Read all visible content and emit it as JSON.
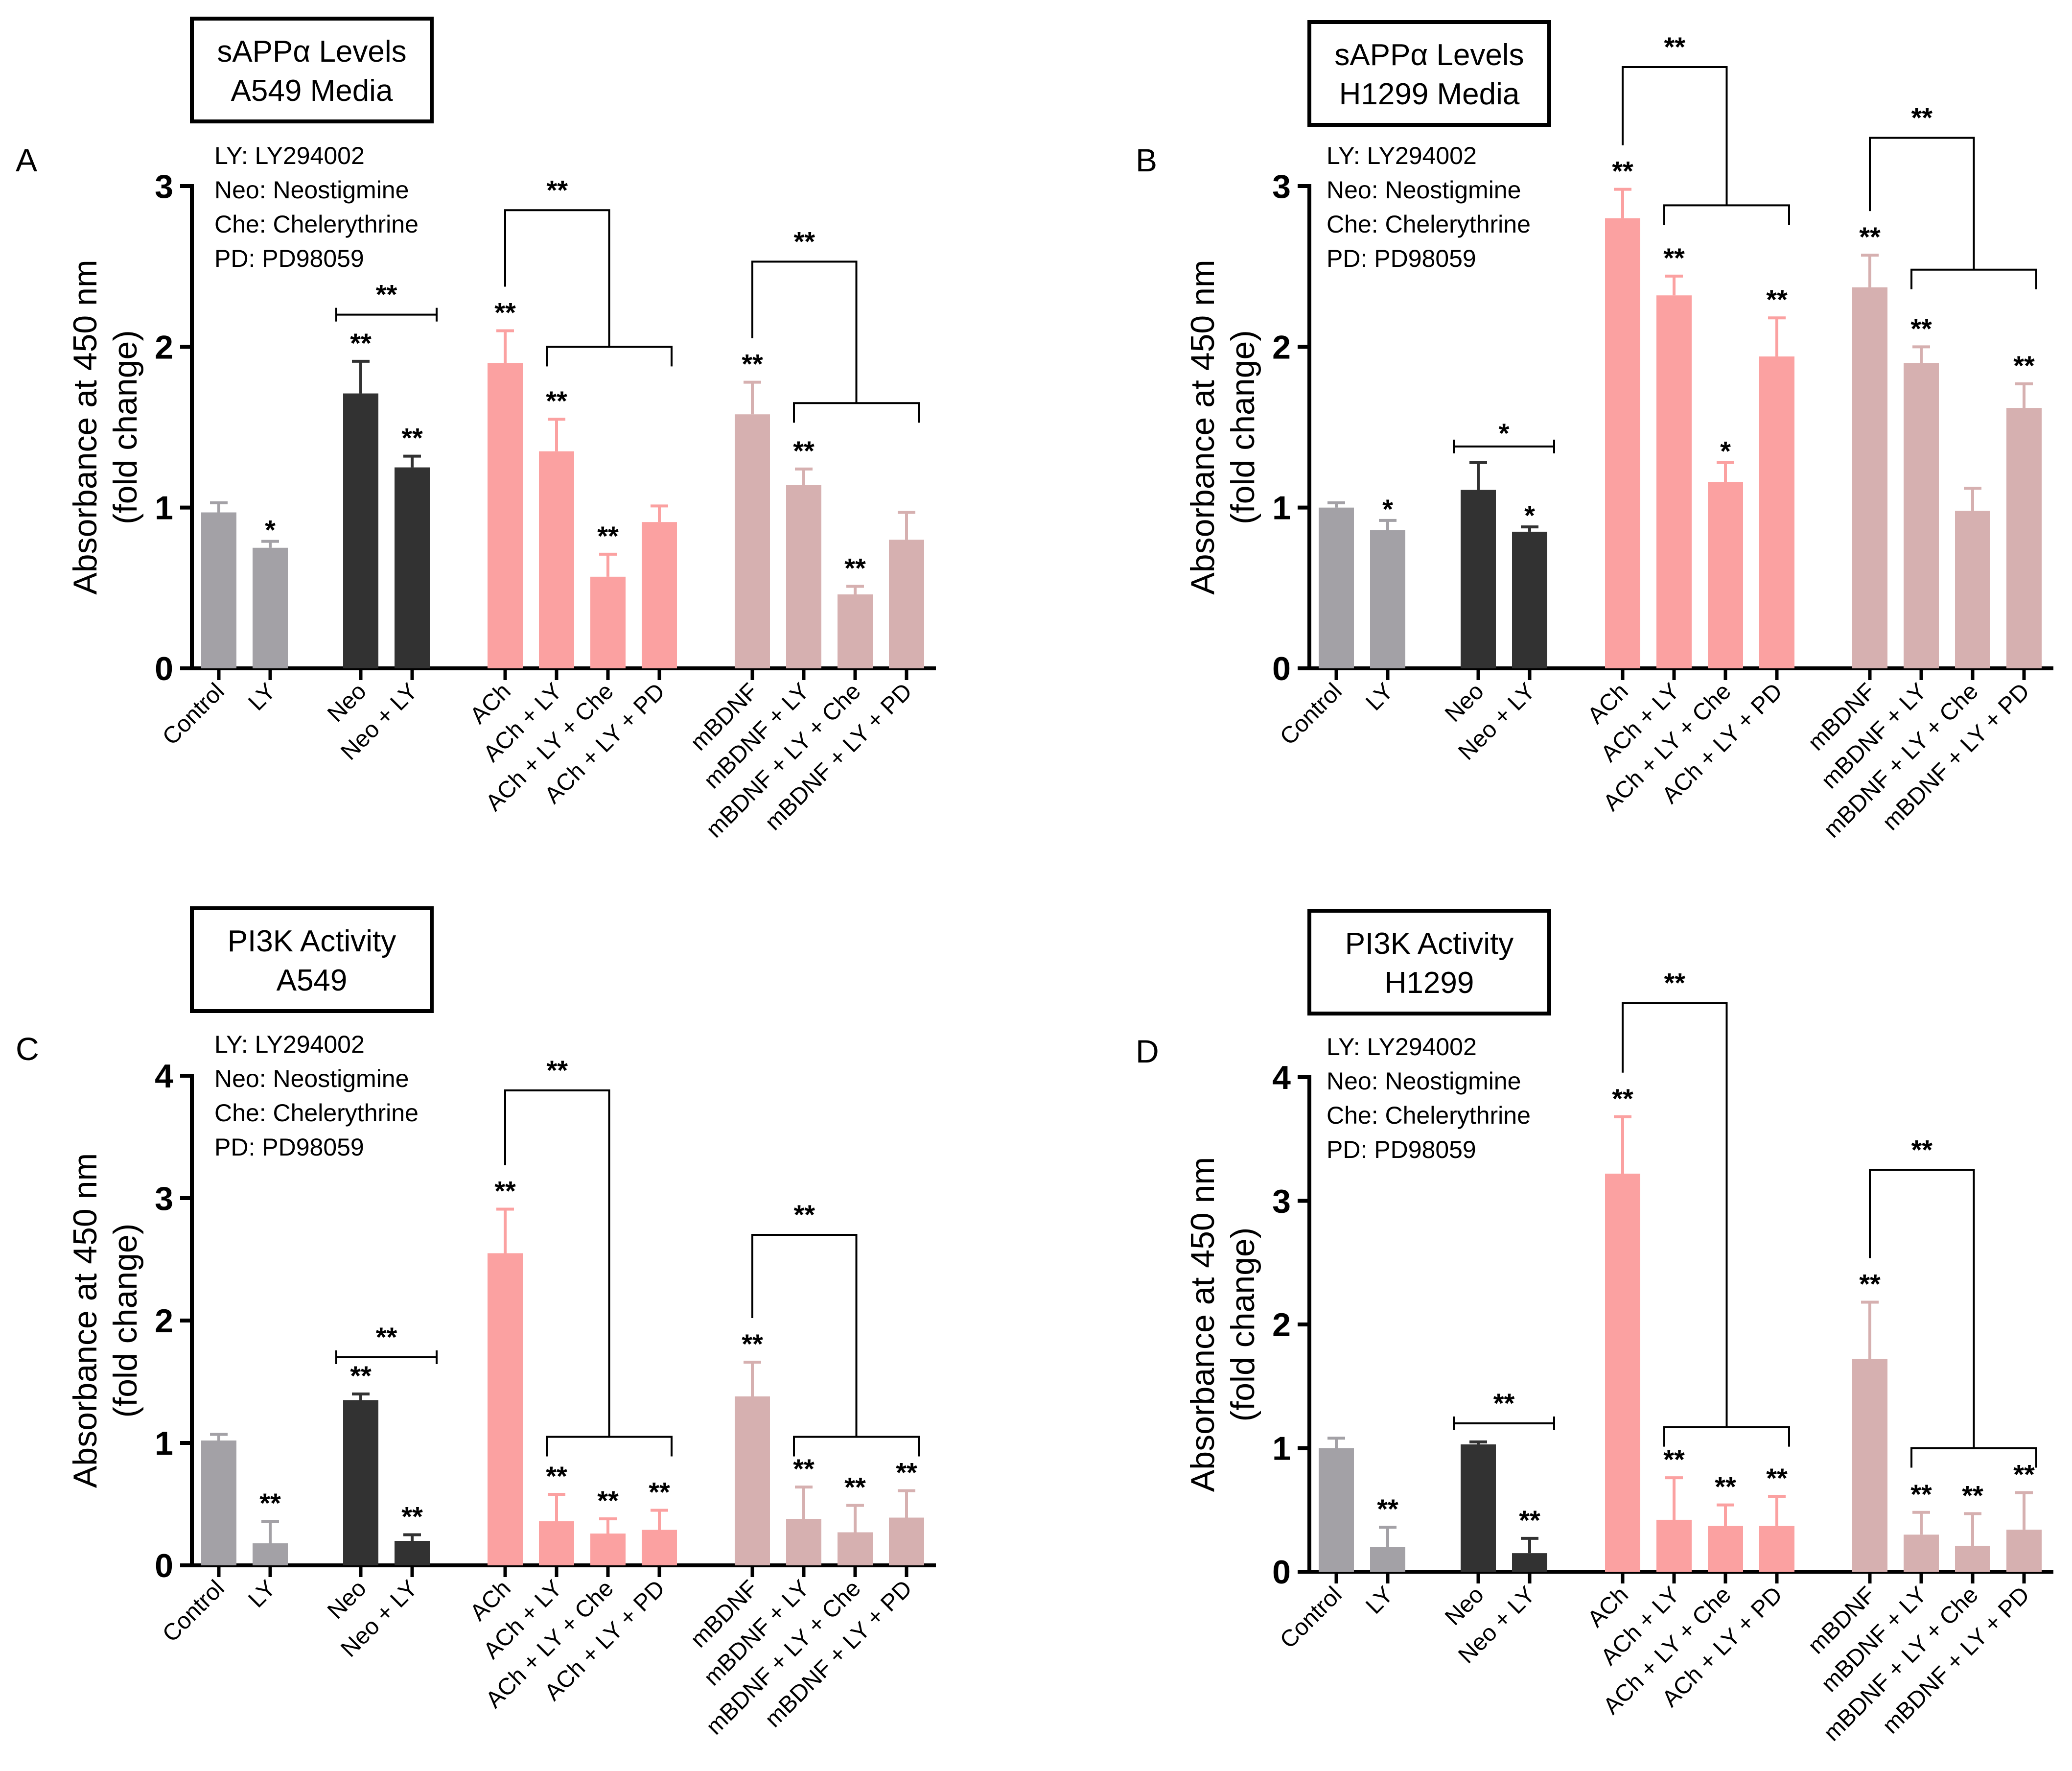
{
  "colors": {
    "gray": "#a3a1a6",
    "dark": "#323232",
    "pink": "#fba1a1",
    "mauve": "#d6b0b0",
    "axis": "#000000"
  },
  "legend_lines": [
    "LY: LY294002",
    "Neo: Neostigmine",
    "Che: Chelerythrine",
    "PD: PD98059"
  ],
  "chart_data": [
    {
      "type": "bar",
      "panel_label": "A",
      "title_lines": [
        "sAPPα Levels",
        "A549 Media"
      ],
      "ylabel_lines": [
        "Absorbance at 450 nm",
        "(fold change)"
      ],
      "ylim": [
        0,
        3
      ],
      "yticks": [
        "0",
        "1",
        "2",
        "3"
      ],
      "categories": [
        "Control",
        "LY",
        "Neo",
        "Neo + LY",
        "ACh",
        "ACh + LY",
        "ACh + LY + Che",
        "ACh + LY + PD",
        "mBDNF",
        "mBDNF + LY",
        "mBDNF + LY + Che",
        "mBDNF + LY + PD"
      ],
      "values": [
        0.97,
        0.75,
        1.71,
        1.25,
        1.9,
        1.35,
        0.57,
        0.91,
        1.58,
        1.14,
        0.46,
        0.8
      ],
      "errors": [
        0.06,
        0.04,
        0.2,
        0.07,
        0.2,
        0.2,
        0.14,
        0.1,
        0.2,
        0.1,
        0.05,
        0.17
      ],
      "color_groups": [
        "gray",
        "gray",
        "dark",
        "dark",
        "pink",
        "pink",
        "pink",
        "pink",
        "mauve",
        "mauve",
        "mauve",
        "mauve"
      ],
      "significance": [
        "",
        "*",
        "**",
        "**",
        "**",
        "**",
        "**",
        "",
        "**",
        "**",
        "**",
        ""
      ],
      "brackets": [
        {
          "type": "span",
          "from": 2,
          "to": 3,
          "y": 2.2,
          "label": "**"
        },
        {
          "type": "fork",
          "anchor": 4,
          "from": 5,
          "to": 7,
          "y_low": 2.0,
          "y_high": 2.85,
          "label": "**"
        },
        {
          "type": "fork",
          "anchor": 8,
          "from": 9,
          "to": 11,
          "y_low": 1.65,
          "y_high": 2.53,
          "label": "**"
        }
      ]
    },
    {
      "type": "bar",
      "panel_label": "B",
      "title_lines": [
        "sAPPα Levels",
        "H1299 Media"
      ],
      "ylabel_lines": [
        "Absorbance at 450 nm",
        "(fold change)"
      ],
      "ylim": [
        0,
        3
      ],
      "yticks": [
        "0",
        "1",
        "2",
        "3"
      ],
      "categories": [
        "Control",
        "LY",
        "Neo",
        "Neo + LY",
        "ACh",
        "ACh + LY",
        "ACh + LY + Che",
        "ACh + LY + PD",
        "mBDNF",
        "mBDNF + LY",
        "mBDNF + LY + Che",
        "mBDNF + LY + PD"
      ],
      "values": [
        1.0,
        0.86,
        1.11,
        0.85,
        2.8,
        2.32,
        1.16,
        1.94,
        2.37,
        1.9,
        0.98,
        1.62
      ],
      "errors": [
        0.03,
        0.06,
        0.17,
        0.03,
        0.18,
        0.12,
        0.12,
        0.24,
        0.2,
        0.1,
        0.14,
        0.15
      ],
      "color_groups": [
        "gray",
        "gray",
        "dark",
        "dark",
        "pink",
        "pink",
        "pink",
        "pink",
        "mauve",
        "mauve",
        "mauve",
        "mauve"
      ],
      "significance": [
        "",
        "*",
        "",
        "*",
        "**",
        "**",
        "*",
        "**",
        "**",
        "**",
        "",
        "**"
      ],
      "brackets": [
        {
          "type": "span",
          "from": 2,
          "to": 3,
          "y": 1.38,
          "label": "*"
        },
        {
          "type": "fork",
          "anchor": 4,
          "from": 5,
          "to": 7,
          "y_low": 2.88,
          "y_high": 3.74,
          "label": "**"
        },
        {
          "type": "fork",
          "anchor": 8,
          "from": 9,
          "to": 11,
          "y_low": 2.48,
          "y_high": 3.3,
          "label": "**"
        }
      ]
    },
    {
      "type": "bar",
      "panel_label": "C",
      "title_lines": [
        "PI3K Activity",
        "A549"
      ],
      "ylabel_lines": [
        "Absorbance at 450 nm",
        "(fold change)"
      ],
      "ylim": [
        0,
        4
      ],
      "yticks": [
        "0",
        "1",
        "2",
        "3",
        "4"
      ],
      "categories": [
        "Control",
        "LY",
        "Neo",
        "Neo + LY",
        "ACh",
        "ACh + LY",
        "ACh + LY + Che",
        "ACh + LY + PD",
        "mBDNF",
        "mBDNF + LY",
        "mBDNF + LY + Che",
        "mBDNF + LY + PD"
      ],
      "values": [
        1.02,
        0.18,
        1.35,
        0.2,
        2.55,
        0.36,
        0.26,
        0.29,
        1.38,
        0.38,
        0.27,
        0.39
      ],
      "errors": [
        0.05,
        0.18,
        0.05,
        0.05,
        0.36,
        0.22,
        0.12,
        0.16,
        0.28,
        0.26,
        0.22,
        0.22
      ],
      "color_groups": [
        "gray",
        "gray",
        "dark",
        "dark",
        "pink",
        "pink",
        "pink",
        "pink",
        "mauve",
        "mauve",
        "mauve",
        "mauve"
      ],
      "significance": [
        "",
        "**",
        "**",
        "**",
        "**",
        "**",
        "**",
        "**",
        "**",
        "**",
        "**",
        "**"
      ],
      "brackets": [
        {
          "type": "span",
          "from": 2,
          "to": 3,
          "y": 1.7,
          "label": "**"
        },
        {
          "type": "fork",
          "anchor": 4,
          "from": 5,
          "to": 7,
          "y_low": 1.05,
          "y_high": 3.88,
          "label": "**"
        },
        {
          "type": "fork",
          "anchor": 8,
          "from": 9,
          "to": 11,
          "y_low": 1.05,
          "y_high": 2.7,
          "label": "**"
        }
      ]
    },
    {
      "type": "bar",
      "panel_label": "D",
      "title_lines": [
        "PI3K Activity",
        "H1299"
      ],
      "ylabel_lines": [
        "Absorbance at 450 nm",
        "(fold change)"
      ],
      "ylim": [
        0,
        4
      ],
      "yticks": [
        "0",
        "1",
        "2",
        "3",
        "4"
      ],
      "categories": [
        "Control",
        "LY",
        "Neo",
        "Neo + LY",
        "ACh",
        "ACh + LY",
        "ACh + LY + Che",
        "ACh + LY + PD",
        "mBDNF",
        "mBDNF + LY",
        "mBDNF + LY + Che",
        "mBDNF + LY + PD"
      ],
      "values": [
        1.0,
        0.2,
        1.03,
        0.15,
        3.22,
        0.42,
        0.37,
        0.37,
        1.72,
        0.3,
        0.21,
        0.34
      ],
      "errors": [
        0.08,
        0.16,
        0.02,
        0.12,
        0.46,
        0.34,
        0.17,
        0.24,
        0.46,
        0.18,
        0.26,
        0.3
      ],
      "color_groups": [
        "gray",
        "gray",
        "dark",
        "dark",
        "pink",
        "pink",
        "pink",
        "pink",
        "mauve",
        "mauve",
        "mauve",
        "mauve"
      ],
      "significance": [
        "",
        "**",
        "",
        "**",
        "**",
        "**",
        "**",
        "**",
        "**",
        "**",
        "**",
        "**"
      ],
      "brackets": [
        {
          "type": "span",
          "from": 2,
          "to": 3,
          "y": 1.2,
          "label": "**"
        },
        {
          "type": "fork",
          "anchor": 4,
          "from": 5,
          "to": 7,
          "y_low": 1.17,
          "y_high": 4.6,
          "label": "**"
        },
        {
          "type": "fork",
          "anchor": 8,
          "from": 9,
          "to": 11,
          "y_low": 1.0,
          "y_high": 3.25,
          "label": "**"
        }
      ]
    }
  ]
}
